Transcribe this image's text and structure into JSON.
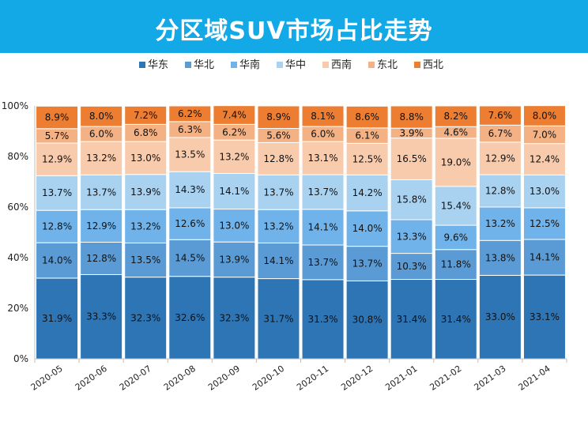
{
  "chart_data": {
    "type": "bar",
    "stacked": true,
    "title": "分区域SUV市场占比走势",
    "xlabel": "",
    "ylabel": "",
    "ylim": [
      0,
      100
    ],
    "yticks": [
      "0%",
      "20%",
      "40%",
      "60%",
      "80%",
      "100%"
    ],
    "legend_position": "top",
    "categories": [
      "2020-05",
      "2020-06",
      "2020-07",
      "2020-08",
      "2020-09",
      "2020-10",
      "2020-11",
      "2020-12",
      "2021-01",
      "2021-02",
      "2021-03",
      "2021-04"
    ],
    "series": [
      {
        "name": "华东",
        "color": "#2e75b6",
        "values": [
          31.9,
          33.3,
          32.3,
          32.6,
          32.3,
          31.7,
          31.3,
          30.8,
          31.4,
          31.4,
          33.0,
          33.1
        ]
      },
      {
        "name": "华北",
        "color": "#5b9bd5",
        "values": [
          14.0,
          12.8,
          13.5,
          14.5,
          13.9,
          14.1,
          13.7,
          13.7,
          10.3,
          11.8,
          13.8,
          14.1
        ]
      },
      {
        "name": "华南",
        "color": "#6fb3ea",
        "values": [
          12.8,
          12.9,
          13.2,
          12.6,
          13.0,
          13.2,
          14.1,
          14.0,
          13.3,
          9.6,
          13.2,
          12.5
        ]
      },
      {
        "name": "华中",
        "color": "#a9d2f0",
        "values": [
          13.7,
          13.7,
          13.9,
          14.3,
          14.1,
          13.7,
          13.7,
          14.2,
          15.8,
          15.4,
          12.8,
          13.0
        ]
      },
      {
        "name": "西南",
        "color": "#f8cbad",
        "values": [
          12.9,
          13.2,
          13.0,
          13.5,
          13.2,
          12.8,
          13.1,
          12.5,
          16.5,
          19.0,
          12.9,
          12.4
        ]
      },
      {
        "name": "东北",
        "color": "#f4b183",
        "values": [
          5.7,
          6.0,
          6.8,
          6.3,
          6.2,
          5.6,
          6.0,
          6.1,
          3.9,
          4.6,
          6.7,
          7.0
        ]
      },
      {
        "name": "西北",
        "color": "#ed7d31",
        "values": [
          8.9,
          8.0,
          7.2,
          6.2,
          7.4,
          8.9,
          8.1,
          8.6,
          8.8,
          8.2,
          7.6,
          8.0
        ]
      }
    ],
    "data_labels": [
      [
        "31.9%",
        "33.3%",
        "32.3%",
        "32.6%",
        "32.3%",
        "31.7%",
        "31.3%",
        "30.8%",
        "31.4%",
        "31.4%",
        "33.0%",
        "33.1%"
      ],
      [
        "14.0%",
        "12.8%",
        "13.5%",
        "14.5%",
        "13.9%",
        "14.1%",
        "13.7%",
        "13.7%",
        "10.3%",
        "11.8%",
        "13.8%",
        "14.1%"
      ],
      [
        "12.8%",
        "12.9%",
        "13.2%",
        "12.6%",
        "13.0%",
        "13.2%",
        "14.1%",
        "14.0%",
        "13.3%",
        "9.6%",
        "13.2%",
        "12.5%"
      ],
      [
        "13.7%",
        "13.7%",
        "13.9%",
        "14.3%",
        "14.1%",
        "13.7%",
        "13.7%",
        "14.2%",
        "15.8%",
        "15.4%",
        "12.8%",
        "13.0%"
      ],
      [
        "12.9%",
        "13.2%",
        "13.0%",
        "13.5%",
        "13.2%",
        "12.8%",
        "13.1%",
        "12.5%",
        "16.5%",
        "19.0%",
        "12.9%",
        "12.4%"
      ],
      [
        "5.7%",
        "6.0%",
        "6.8%",
        "6.3%",
        "6.2%",
        "5.6%",
        "6.0%",
        "6.1%",
        "3.9%",
        "4.6%",
        "6.7%",
        "7.0%"
      ],
      [
        "8.9%",
        "8.0%",
        "7.2%",
        "6.2%",
        "7.4%",
        "8.9%",
        "8.1%",
        "8.6%",
        "8.8%",
        "8.2%",
        "7.6%",
        "8.0%"
      ]
    ]
  }
}
